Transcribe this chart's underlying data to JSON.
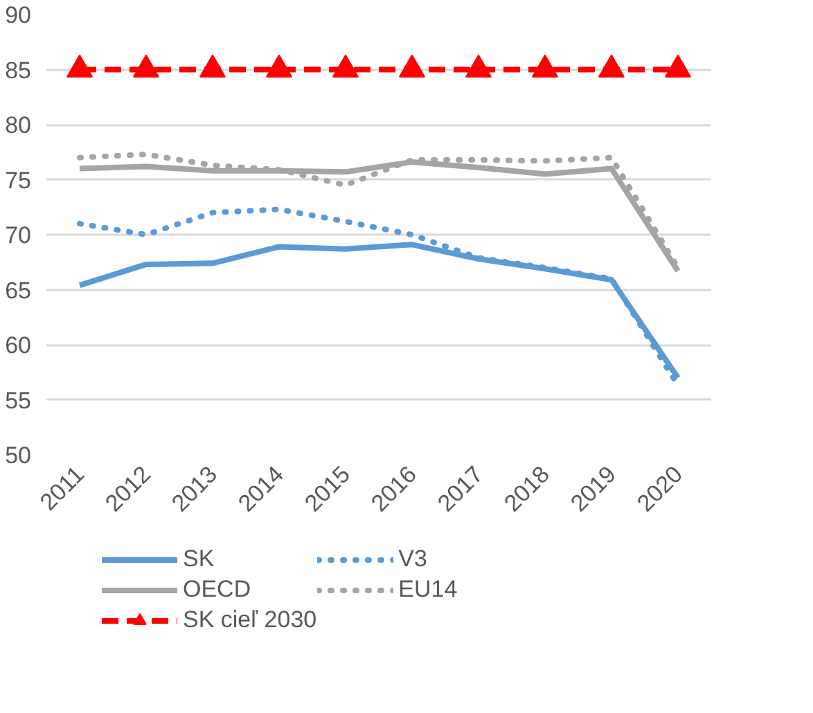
{
  "chart_data": {
    "type": "line",
    "categories": [
      "2011",
      "2012",
      "2013",
      "2014",
      "2015",
      "2016",
      "2017",
      "2018",
      "2019",
      "2020"
    ],
    "series": [
      {
        "name": "SK",
        "color": "#5b9bd5",
        "line_style": "solid",
        "values": [
          65.4,
          67.3,
          67.4,
          68.9,
          68.7,
          69.1,
          67.8,
          66.9,
          65.9,
          57.0
        ]
      },
      {
        "name": "V3",
        "color": "#5b9bd5",
        "line_style": "dotted",
        "values": [
          71.0,
          70.0,
          72.0,
          72.3,
          71.2,
          70.0,
          67.9,
          67.0,
          66.0,
          56.3
        ]
      },
      {
        "name": "OECD",
        "color": "#a5a5a5",
        "line_style": "solid",
        "values": [
          76.0,
          76.2,
          75.8,
          75.8,
          75.7,
          76.6,
          76.1,
          75.5,
          76.0,
          66.7
        ]
      },
      {
        "name": "EU14",
        "color": "#a5a5a5",
        "line_style": "dotted",
        "values": [
          77.0,
          77.3,
          76.3,
          75.9,
          74.5,
          76.8,
          76.8,
          76.7,
          77.0,
          67.0
        ]
      },
      {
        "name": "SK cieľ 2030",
        "color": "#ff0000",
        "line_style": "dashed",
        "marker": "triangle",
        "values": [
          85,
          85,
          85,
          85,
          85,
          85,
          85,
          85,
          85,
          85
        ]
      }
    ],
    "ylim": [
      50,
      90
    ],
    "yticks": [
      50,
      55,
      60,
      65,
      70,
      75,
      80,
      85,
      90
    ],
    "grid": "y",
    "legend": "bottom"
  }
}
